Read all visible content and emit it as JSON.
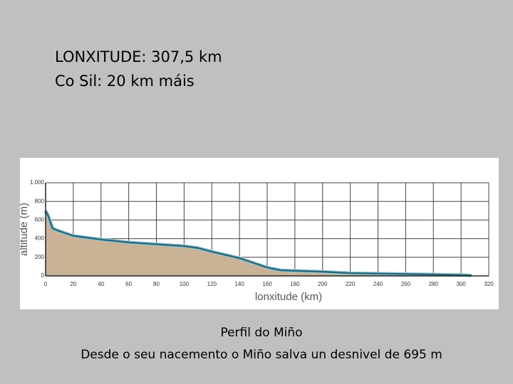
{
  "slide": {
    "heading": [
      "LONXITUDE: 307,5 km",
      "Co Sil: 20 km máis"
    ],
    "caption": [
      "Perfil do Miño",
      "Desde o seu nacemento o Miño salva un desnivel de 695 m"
    ]
  },
  "chart_data": {
    "type": "area",
    "xlabel": "lonxitude (km)",
    "ylabel": "altitude (m)",
    "x": [
      0,
      2,
      5,
      10,
      20,
      40,
      60,
      80,
      100,
      110,
      120,
      140,
      160,
      170,
      200,
      220,
      260,
      300,
      307.5
    ],
    "series": [
      {
        "color": "#2a6a7a",
        "fill": "#c9b296",
        "values": [
          700,
          640,
          510,
          480,
          430,
          390,
          360,
          340,
          320,
          300,
          260,
          190,
          90,
          60,
          45,
          30,
          20,
          10,
          5
        ]
      }
    ],
    "xlim": [
      0,
      320
    ],
    "xticks": [
      0,
      20,
      40,
      60,
      80,
      100,
      120,
      140,
      160,
      180,
      200,
      220,
      240,
      260,
      280,
      300,
      320
    ],
    "ylim": [
      0,
      1000
    ],
    "yticks": [
      0,
      200,
      400,
      600,
      800,
      {
        "value": 1000,
        "label": "1.000"
      }
    ],
    "grid": true
  }
}
